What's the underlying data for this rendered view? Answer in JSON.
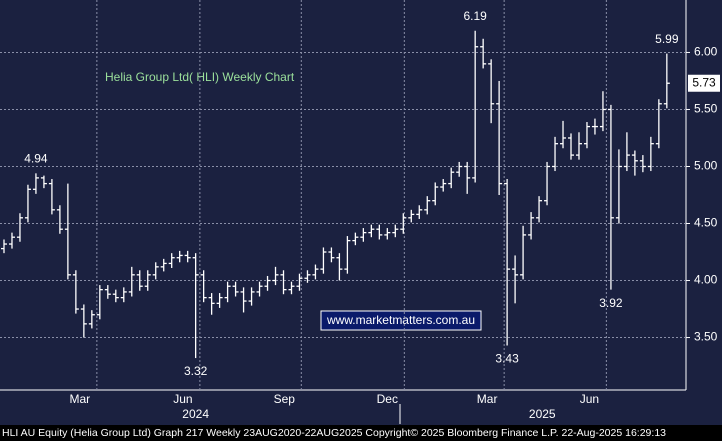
{
  "chart_data": {
    "type": "ohlc",
    "title": "Helia Group  Ltd( HLI) Weekly Chart",
    "watermark": "www.marketmatters.com.au",
    "footer": "HLI AU Equity (Helia Group Ltd) Graph 217  Weekly 23AUG2020-22AUG2025 Copyright© 2025 Bloomberg Finance L.P. 22-Aug-2025 16:29:13",
    "open": [
      4.28,
      4.32,
      4.38,
      4.55,
      4.8,
      4.9,
      4.85,
      4.62,
      4.45,
      4.05,
      3.75,
      3.62,
      3.7,
      3.92,
      3.88,
      3.85,
      3.9,
      4.05,
      3.95,
      4.05,
      4.12,
      4.15,
      4.2,
      4.22,
      4.2,
      4.05,
      3.85,
      3.8,
      3.85,
      3.95,
      3.9,
      3.82,
      3.9,
      3.95,
      4.0,
      4.05,
      3.92,
      3.95,
      4.02,
      4.05,
      4.1,
      4.25,
      4.2,
      4.1,
      4.35,
      4.38,
      4.42,
      4.45,
      4.4,
      4.42,
      4.45,
      4.55,
      4.58,
      4.62,
      4.7,
      4.82,
      4.85,
      4.95,
      5.0,
      4.9,
      6.05,
      5.9,
      5.55,
      4.85,
      4.1,
      4.05,
      4.4,
      4.55,
      4.7,
      5.0,
      5.2,
      5.25,
      5.1,
      5.2,
      5.35,
      5.35,
      5.5,
      4.55,
      5.0,
      5.1,
      5.05,
      5.0,
      5.2,
      5.55
    ],
    "high": [
      4.36,
      4.42,
      4.59,
      4.84,
      4.94,
      4.92,
      4.89,
      4.66,
      4.85,
      4.09,
      3.79,
      3.74,
      3.96,
      3.96,
      3.92,
      3.94,
      4.12,
      4.09,
      4.09,
      4.16,
      4.19,
      4.24,
      4.26,
      4.26,
      4.24,
      4.09,
      3.89,
      3.89,
      3.99,
      3.99,
      3.94,
      3.94,
      3.99,
      4.04,
      4.12,
      4.09,
      3.99,
      4.06,
      4.09,
      4.14,
      4.29,
      4.29,
      4.24,
      4.39,
      4.42,
      4.46,
      4.49,
      4.49,
      4.46,
      4.49,
      4.59,
      4.62,
      4.66,
      4.74,
      4.86,
      4.89,
      4.99,
      5.04,
      5.04,
      6.19,
      6.12,
      5.94,
      5.75,
      4.89,
      4.22,
      4.48,
      4.6,
      4.74,
      5.04,
      5.26,
      5.4,
      5.29,
      5.3,
      5.39,
      5.42,
      5.66,
      5.54,
      5.15,
      5.3,
      5.14,
      5.1,
      5.26,
      5.59,
      5.99
    ],
    "low": [
      4.24,
      4.28,
      4.34,
      4.51,
      4.76,
      4.81,
      4.58,
      4.41,
      4.01,
      3.71,
      3.5,
      3.58,
      3.66,
      3.84,
      3.81,
      3.81,
      3.86,
      3.91,
      3.91,
      4.01,
      4.08,
      4.11,
      4.16,
      4.16,
      3.32,
      3.81,
      3.7,
      3.76,
      3.81,
      3.86,
      3.72,
      3.78,
      3.86,
      3.91,
      3.96,
      3.88,
      3.88,
      3.91,
      3.98,
      4.01,
      4.06,
      4.16,
      4.0,
      4.06,
      4.31,
      4.34,
      4.38,
      4.36,
      4.36,
      4.38,
      4.41,
      4.51,
      4.54,
      4.58,
      4.66,
      4.78,
      4.81,
      4.91,
      4.76,
      4.86,
      5.86,
      5.38,
      4.75,
      3.43,
      3.8,
      4.01,
      4.36,
      4.51,
      4.66,
      4.96,
      5.16,
      5.06,
      5.06,
      5.16,
      5.28,
      5.31,
      3.92,
      4.5,
      4.96,
      4.92,
      4.95,
      4.96,
      5.16,
      5.51
    ],
    "close": [
      4.32,
      4.38,
      4.55,
      4.8,
      4.9,
      4.85,
      4.62,
      4.45,
      4.05,
      3.75,
      3.62,
      3.7,
      3.92,
      3.88,
      3.85,
      3.9,
      4.05,
      3.95,
      4.05,
      4.12,
      4.15,
      4.2,
      4.22,
      4.2,
      4.05,
      3.85,
      3.8,
      3.85,
      3.95,
      3.9,
      3.82,
      3.9,
      3.95,
      4.0,
      4.05,
      3.92,
      3.95,
      4.02,
      4.05,
      4.1,
      4.25,
      4.2,
      4.1,
      4.35,
      4.38,
      4.42,
      4.45,
      4.4,
      4.42,
      4.45,
      4.55,
      4.58,
      4.62,
      4.7,
      4.82,
      4.85,
      4.95,
      5.0,
      4.9,
      6.05,
      5.9,
      5.55,
      4.85,
      4.1,
      4.05,
      4.4,
      4.55,
      4.7,
      5.0,
      5.2,
      5.25,
      5.1,
      5.2,
      5.35,
      5.35,
      5.5,
      4.55,
      5.0,
      5.1,
      5.05,
      5.0,
      5.2,
      5.55,
      5.73
    ],
    "color": "#ffffff",
    "xlim": [
      -0.5,
      85.4
    ],
    "xticks": [
      {
        "value": 9.5,
        "label": "Mar"
      },
      {
        "value": 22.4,
        "label": "Jun"
      },
      {
        "value": 35.1,
        "label": "Sep"
      },
      {
        "value": 48,
        "label": "Dec"
      },
      {
        "value": 60.5,
        "label": "Mar"
      },
      {
        "value": 73.3,
        "label": "Jun"
      }
    ],
    "year_labels": [
      {
        "value": 24,
        "label": "2024"
      },
      {
        "value": 67.4,
        "label": "2025"
      }
    ],
    "ylim": [
      3.04,
      6.46
    ],
    "yticks": [
      {
        "value": 3.5,
        "label": "3.50"
      },
      {
        "value": 4,
        "label": "4.00"
      },
      {
        "value": 4.5,
        "label": "4.50"
      },
      {
        "value": 5,
        "label": "5.00"
      },
      {
        "value": 5.5,
        "label": "5.50"
      },
      {
        "value": 6,
        "label": "6.00"
      }
    ],
    "grid": true
  }
}
